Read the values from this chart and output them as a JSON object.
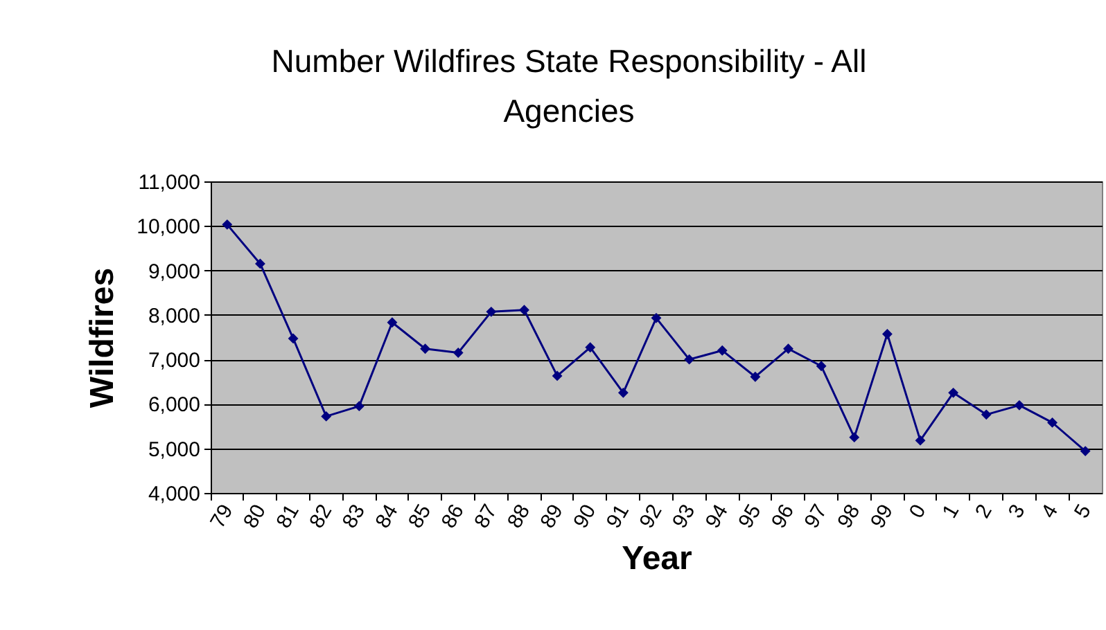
{
  "chart_data": {
    "type": "line",
    "title": "Number Wildfires State Responsibility - All Agencies",
    "xlabel": "Year",
    "ylabel": "Wildfires",
    "categories": [
      "79",
      "80",
      "81",
      "82",
      "83",
      "84",
      "85",
      "86",
      "87",
      "88",
      "89",
      "90",
      "91",
      "92",
      "93",
      "94",
      "95",
      "96",
      "97",
      "98",
      "99",
      "0",
      "1",
      "2",
      "3",
      "4",
      "5"
    ],
    "series": [
      {
        "color": "#000080",
        "values": [
          10030,
          9150,
          7470,
          5720,
          5950,
          7830,
          7240,
          7150,
          8070,
          8110,
          6630,
          7270,
          6250,
          7930,
          7000,
          7200,
          6610,
          7240,
          6850,
          5250,
          7570,
          5180,
          6250,
          5760,
          5970,
          5580,
          4940
        ]
      }
    ],
    "ylim": [
      4000,
      11000
    ],
    "yticks": [
      {
        "value": 4000,
        "label": "4,000"
      },
      {
        "value": 5000,
        "label": "5,000"
      },
      {
        "value": 6000,
        "label": "6,000"
      },
      {
        "value": 7000,
        "label": "7,000"
      },
      {
        "value": 8000,
        "label": "8,000"
      },
      {
        "value": 9000,
        "label": "9,000"
      },
      {
        "value": 10000,
        "label": "10,000"
      },
      {
        "value": 11000,
        "label": "11,000"
      }
    ],
    "grid": "y",
    "marker": "diamond",
    "line_style": "solid"
  }
}
